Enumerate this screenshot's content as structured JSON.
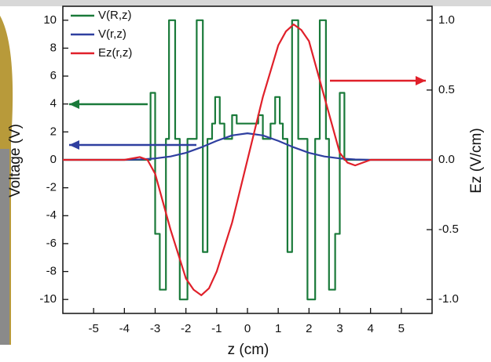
{
  "chart_data": {
    "type": "line",
    "xlabel": "z (cm)",
    "ylabel": "Voltage (V)",
    "y2label": "Ez (V/cm)",
    "xlim": [
      -6,
      6
    ],
    "xticks": [
      -5,
      -4,
      -3,
      -2,
      -1,
      0,
      1,
      2,
      3,
      4,
      5
    ],
    "ylim": [
      -11,
      11
    ],
    "yticks": [
      -10,
      -8,
      -6,
      -4,
      -2,
      0,
      2,
      4,
      6,
      8,
      10
    ],
    "y2lim": [
      -1.1,
      1.1
    ],
    "y2ticks": [
      {
        "value": -1,
        "label": "-1.0"
      },
      {
        "value": -0.5,
        "label": "-0.5"
      },
      {
        "value": 0,
        "label": "0.0"
      },
      {
        "value": 0.5,
        "label": "0.5"
      },
      {
        "value": 1,
        "label": "1.0"
      }
    ],
    "legend": "top-left",
    "series": [
      {
        "name": "V(R,z)",
        "color": "#1a7a3a",
        "x": [
          -6,
          -3.15,
          -3.15,
          -3.0,
          -3.0,
          -2.85,
          -2.85,
          -2.65,
          -2.65,
          -2.55,
          -2.55,
          -2.35,
          -2.35,
          -2.2,
          -2.2,
          -1.95,
          -1.95,
          -1.65,
          -1.65,
          -1.45,
          -1.45,
          -1.3,
          -1.3,
          -1.15,
          -1.15,
          -1.05,
          -1.05,
          -0.9,
          -0.9,
          -0.75,
          -0.75,
          -0.5,
          -0.5,
          -0.35,
          -0.35,
          0.35,
          0.35,
          0.5,
          0.5,
          0.75,
          0.75,
          0.9,
          0.9,
          1.05,
          1.05,
          1.15,
          1.15,
          1.3,
          1.3,
          1.45,
          1.45,
          1.65,
          1.65,
          1.95,
          1.95,
          2.2,
          2.2,
          2.35,
          2.35,
          2.55,
          2.55,
          2.65,
          2.65,
          2.85,
          2.85,
          3.0,
          3.0,
          3.15,
          3.15,
          6
        ],
        "values": [
          0,
          0,
          4.8,
          4.8,
          -5.3,
          -5.3,
          -9.3,
          -9.3,
          1.5,
          1.5,
          10,
          10,
          1.5,
          1.5,
          -10,
          -10,
          1.5,
          1.5,
          10,
          10,
          -6.6,
          -6.6,
          1.5,
          1.5,
          2.6,
          2.6,
          4.5,
          4.5,
          2.6,
          2.6,
          1.5,
          1.5,
          3.2,
          3.2,
          2.6,
          2.6,
          3.2,
          3.2,
          1.5,
          1.5,
          2.6,
          2.6,
          4.5,
          4.5,
          2.6,
          2.6,
          1.5,
          1.5,
          -6.6,
          -6.6,
          10,
          10,
          1.5,
          1.5,
          -10,
          -10,
          1.5,
          1.5,
          10,
          10,
          1.5,
          1.5,
          -9.3,
          -9.3,
          -5.3,
          -5.3,
          4.8,
          4.8,
          0,
          0
        ]
      },
      {
        "name": "V(r,z)",
        "color": "#2f3fa0",
        "x": [
          -6,
          -4,
          -3.5,
          -3,
          -2.5,
          -2,
          -1.5,
          -1,
          -0.5,
          0,
          0.5,
          1,
          1.5,
          2,
          2.5,
          3,
          3.5,
          4,
          6
        ],
        "values": [
          0,
          0,
          0.03,
          0.1,
          0.24,
          0.5,
          0.9,
          1.36,
          1.75,
          1.9,
          1.75,
          1.36,
          0.9,
          0.5,
          0.24,
          0.1,
          0.03,
          0,
          0
        ]
      },
      {
        "name": "Ez(r,z)",
        "color": "#e0202a",
        "axis": "y2",
        "x": [
          -6,
          -4,
          -3.5,
          -3.25,
          -3,
          -2.75,
          -2.5,
          -2,
          -1.75,
          -1.5,
          -1.25,
          -1,
          -0.5,
          0,
          0.5,
          1,
          1.25,
          1.5,
          1.75,
          2,
          2.5,
          2.75,
          3,
          3.25,
          3.5,
          4,
          6
        ],
        "values": [
          0,
          0,
          0.02,
          0,
          -0.1,
          -0.3,
          -0.5,
          -0.85,
          -0.93,
          -0.97,
          -0.92,
          -0.8,
          -0.45,
          0,
          0.45,
          0.82,
          0.92,
          0.97,
          0.93,
          0.85,
          0.45,
          0.25,
          0.05,
          -0.02,
          -0.04,
          0,
          0
        ]
      }
    ]
  }
}
